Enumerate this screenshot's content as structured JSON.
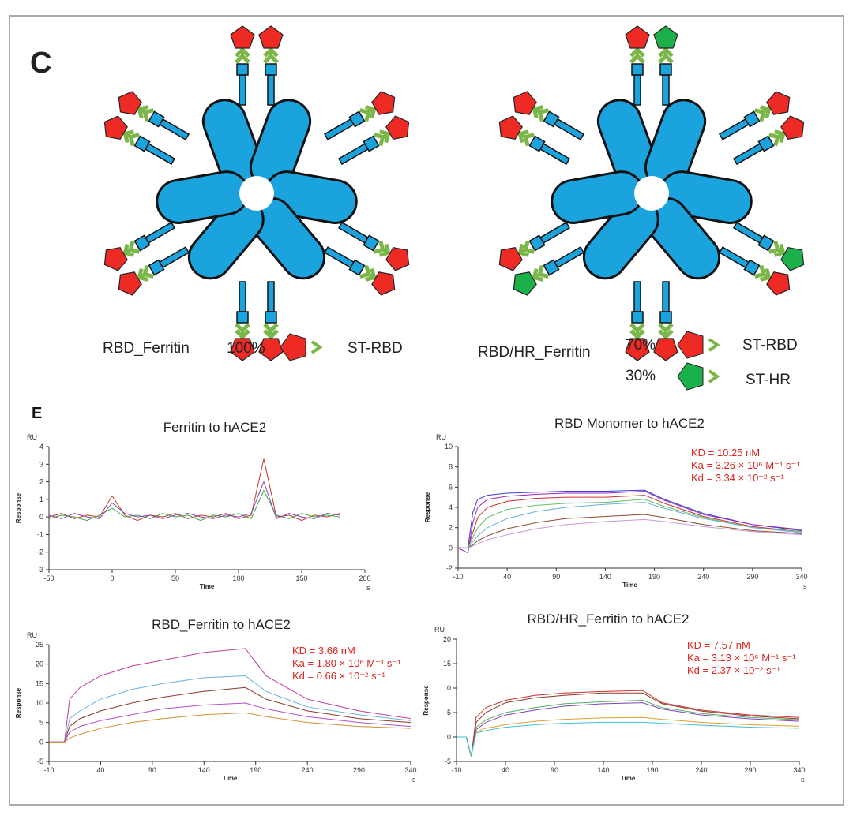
{
  "panel_c": {
    "label": "C",
    "left": {
      "name": "RBD_Ferritin",
      "percent": "100%",
      "component": "ST-RBD"
    },
    "right": {
      "name": "RBD/HR_Ferritin",
      "percent_1": "70%",
      "component_1": "ST-RBD",
      "percent_2": "30%",
      "component_2": "ST-HR"
    }
  },
  "panel_e_label": "E",
  "chart_data": [
    {
      "type": "line",
      "title": "Ferritin to hACE2",
      "y_unit": "RU",
      "y_label": "Response",
      "x_label": "Time",
      "x_unit": "s",
      "xlim": [
        -50,
        200
      ],
      "xticks": [
        -50,
        0,
        50,
        100,
        150,
        200
      ],
      "ylim": [
        -3,
        4
      ],
      "yticks": [
        -3,
        -2,
        -1,
        0,
        1,
        2,
        3,
        4
      ],
      "x": [
        -50,
        -40,
        -30,
        -20,
        -10,
        0,
        10,
        20,
        30,
        40,
        50,
        60,
        70,
        80,
        90,
        100,
        110,
        120,
        130,
        140,
        150,
        160,
        170,
        180
      ],
      "series": [
        {
          "color": "#c0392b",
          "values": [
            0,
            0.2,
            -0.1,
            0.1,
            0,
            1.2,
            0.1,
            -0.2,
            0.1,
            0,
            0.2,
            -0.1,
            0.1,
            0,
            0.2,
            -0.1,
            0.1,
            3.3,
            0,
            0.1,
            -0.2,
            0.1,
            0,
            0.2
          ]
        },
        {
          "color": "#3aa845",
          "values": [
            -0.1,
            0.1,
            0,
            -0.2,
            0.1,
            0.5,
            0,
            0.1,
            -0.1,
            0.2,
            0,
            0.1,
            -0.2,
            0.1,
            0,
            0.2,
            -0.1,
            1.5,
            0.1,
            -0.1,
            0.2,
            0,
            0.1,
            0
          ]
        },
        {
          "color": "#8e44ad",
          "values": [
            0.1,
            -0.1,
            0.2,
            0,
            -0.1,
            0.8,
            0.2,
            0,
            0.1,
            -0.1,
            0.1,
            0.2,
            0,
            -0.1,
            0.1,
            0,
            0.2,
            2,
            -0.1,
            0.2,
            0,
            -0.1,
            0.2,
            0.1
          ]
        }
      ]
    },
    {
      "type": "line",
      "title": "RBD Monomer to hACE2",
      "y_unit": "RU",
      "y_label": "Response",
      "x_label": "Time",
      "x_unit": "s",
      "annotations": [
        "KD = 10.25 nM",
        "Ka = 3.26 × 10⁶ M⁻¹ s⁻¹",
        "Kd = 3.34 × 10⁻² s⁻¹"
      ],
      "annotation_color": "#e0231c",
      "xlim": [
        -10,
        340
      ],
      "xticks": [
        -10,
        40,
        90,
        140,
        190,
        240,
        290,
        340
      ],
      "ylim": [
        -2,
        10
      ],
      "yticks": [
        -2,
        0,
        2,
        4,
        6,
        8,
        10
      ],
      "x": [
        -10,
        0,
        5,
        10,
        20,
        40,
        70,
        100,
        140,
        180,
        200,
        240,
        290,
        340
      ],
      "series": [
        {
          "color": "#3b3bd6",
          "values": [
            0,
            0,
            3.5,
            4.8,
            5.2,
            5.4,
            5.5,
            5.6,
            5.6,
            5.7,
            4.8,
            3.4,
            2.3,
            1.7
          ]
        },
        {
          "color": "#a020c0",
          "values": [
            0,
            -0.5,
            2.5,
            4,
            4.8,
            5.1,
            5.3,
            5.4,
            5.4,
            5.6,
            4.7,
            3.3,
            2.3,
            1.8
          ]
        },
        {
          "color": "#d03030",
          "values": [
            0,
            0,
            1.5,
            3,
            4,
            4.6,
            4.9,
            5,
            5,
            5.2,
            4.4,
            3.1,
            2.1,
            1.6
          ]
        },
        {
          "color": "#60c060",
          "values": [
            0,
            0,
            1,
            2,
            3,
            3.8,
            4.2,
            4.4,
            4.5,
            4.8,
            4.1,
            3,
            2,
            1.6
          ]
        },
        {
          "color": "#6aaee0",
          "values": [
            0,
            0,
            0.6,
            1.2,
            2,
            2.9,
            3.6,
            4,
            4.3,
            4.5,
            3.9,
            2.9,
            2,
            1.5
          ]
        },
        {
          "color": "#8b4a2b",
          "values": [
            0,
            0,
            0.3,
            0.7,
            1.2,
            1.9,
            2.5,
            2.9,
            3.1,
            3.3,
            3,
            2.3,
            1.7,
            1.4
          ]
        },
        {
          "color": "#c79ad8",
          "values": [
            0,
            0,
            0.2,
            0.4,
            0.8,
            1.3,
            1.9,
            2.3,
            2.6,
            2.8,
            2.6,
            2.1,
            1.6,
            1.3
          ]
        }
      ]
    },
    {
      "type": "line",
      "title": "RBD_Ferritin to hACE2",
      "y_unit": "RU",
      "y_label": "Response",
      "x_label": "Time",
      "x_unit": "s",
      "annotations": [
        "KD = 3.66 nM",
        "Ka = 1.80 × 10⁶ M⁻¹ s⁻¹",
        "Kd = 0.66 × 10⁻² s⁻¹"
      ],
      "annotation_color": "#e0231c",
      "xlim": [
        -10,
        340
      ],
      "xticks": [
        -10,
        40,
        90,
        140,
        190,
        240,
        290,
        340
      ],
      "ylim": [
        -5,
        25
      ],
      "yticks": [
        -5,
        0,
        5,
        10,
        15,
        20,
        25
      ],
      "x": [
        -10,
        0,
        5,
        10,
        20,
        40,
        70,
        100,
        140,
        180,
        200,
        240,
        290,
        340
      ],
      "series": [
        {
          "color": "#c040a0",
          "values": [
            0,
            0,
            0,
            11,
            14,
            17,
            19.5,
            21,
            23,
            24,
            17,
            11,
            8,
            6
          ]
        },
        {
          "color": "#6ab0e0",
          "values": [
            0,
            0,
            0,
            6,
            8,
            11,
            13.5,
            15,
            16.5,
            17,
            13,
            9,
            7,
            5.5
          ]
        },
        {
          "color": "#8b3a2b",
          "values": [
            0,
            0,
            0,
            4,
            6,
            8,
            10,
            11.5,
            13,
            14,
            11,
            8,
            6,
            5
          ]
        },
        {
          "color": "#b050d0",
          "values": [
            0,
            0,
            0,
            2.5,
            4,
            5.5,
            7,
            8.5,
            9.5,
            10,
            8.5,
            6.5,
            5,
            4
          ]
        },
        {
          "color": "#d09030",
          "values": [
            0,
            0,
            0,
            1,
            2,
            3.5,
            5,
            6,
            7,
            7.5,
            6.5,
            5,
            4,
            3.5
          ]
        }
      ]
    },
    {
      "type": "line",
      "title": "RBD/HR_Ferritin to hACE2",
      "y_unit": "RU",
      "y_label": "Response",
      "x_label": "Time",
      "x_unit": "s",
      "annotations": [
        "KD = 7.57 nM",
        "Ka = 3.13 × 10⁶ M⁻¹ s⁻¹",
        "Kd = 2.37 × 10⁻² s⁻¹"
      ],
      "annotation_color": "#e0231c",
      "xlim": [
        -10,
        340
      ],
      "xticks": [
        -10,
        40,
        90,
        140,
        190,
        240,
        290,
        340
      ],
      "ylim": [
        -5,
        20
      ],
      "yticks": [
        -5,
        0,
        5,
        10,
        15,
        20
      ],
      "x": [
        -10,
        0,
        5,
        10,
        20,
        40,
        70,
        100,
        140,
        180,
        200,
        240,
        290,
        340
      ],
      "series": [
        {
          "color": "#d03030",
          "values": [
            0,
            0,
            -4,
            4,
            6,
            7.5,
            8.5,
            9,
            9.3,
            9.5,
            7,
            5.5,
            4.5,
            4
          ]
        },
        {
          "color": "#8b3a2b",
          "values": [
            0,
            0,
            -4,
            3,
            5,
            7,
            8,
            8.5,
            9,
            9,
            6.8,
            5.3,
            4.3,
            3.7
          ]
        },
        {
          "color": "#50b060",
          "values": [
            0,
            0,
            -4,
            2,
            3.5,
            5,
            6,
            6.8,
            7.2,
            7.5,
            6,
            4.8,
            4,
            3.5
          ]
        },
        {
          "color": "#8040c0",
          "values": [
            0,
            0,
            -4,
            1.5,
            3,
            4.5,
            5.5,
            6.3,
            6.8,
            7,
            5.7,
            4.5,
            3.7,
            3.2
          ]
        },
        {
          "color": "#e0a030",
          "values": [
            0,
            0,
            -4,
            1,
            1.8,
            2.5,
            3.2,
            3.6,
            3.9,
            4,
            3.6,
            3,
            2.5,
            2.2
          ]
        },
        {
          "color": "#40c0d0",
          "values": [
            0,
            0,
            -4,
            0.8,
            1.3,
            2,
            2.5,
            2.8,
            3,
            3,
            2.8,
            2.4,
            2,
            1.8
          ]
        }
      ]
    }
  ]
}
